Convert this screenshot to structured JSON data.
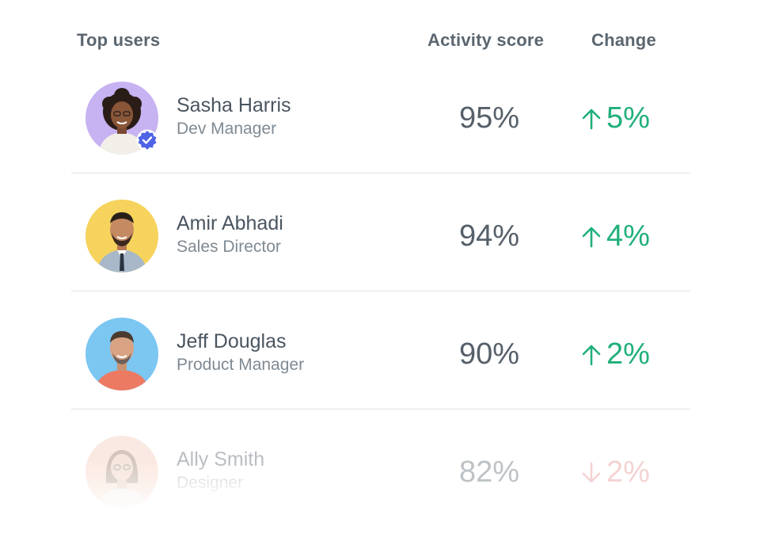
{
  "header": {
    "users_label": "Top users",
    "score_label": "Activity score",
    "change_label": "Change"
  },
  "colors": {
    "positive": "#1fb07a",
    "negative": "#e58b8b",
    "verified_badge": "#4f63e6"
  },
  "users": [
    {
      "name": "Sasha Harris",
      "role": "Dev Manager",
      "score": "95%",
      "change": "5%",
      "direction": "up",
      "verified": true,
      "avatar_bg": "#c7b2f2",
      "avatar_icon": "avatar-photo-icon"
    },
    {
      "name": "Amir Abhadi",
      "role": "Sales Director",
      "score": "94%",
      "change": "4%",
      "direction": "up",
      "verified": false,
      "avatar_bg": "#f6d35c",
      "avatar_icon": "avatar-photo-icon"
    },
    {
      "name": "Jeff Douglas",
      "role": "Product Manager",
      "score": "90%",
      "change": "2%",
      "direction": "up",
      "verified": false,
      "avatar_bg": "#7cc6f2",
      "avatar_icon": "avatar-photo-icon"
    },
    {
      "name": "Ally Smith",
      "role": "Designer",
      "score": "82%",
      "change": "2%",
      "direction": "down",
      "verified": false,
      "avatar_bg": "#f4c7b4",
      "avatar_icon": "avatar-photo-icon"
    }
  ]
}
